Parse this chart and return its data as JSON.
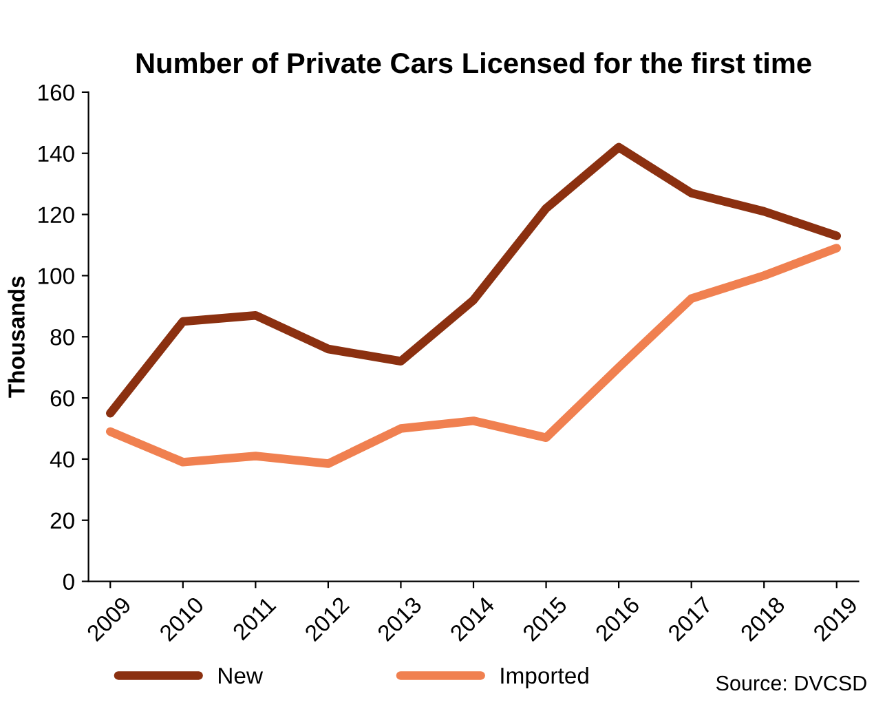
{
  "chart_data": {
    "type": "line",
    "title": "Number of Private Cars Licensed for the first time",
    "ylabel": "Thousands",
    "categories": [
      "2009",
      "2010",
      "2011",
      "2012",
      "2013",
      "2014",
      "2015",
      "2016",
      "2017",
      "2018",
      "2019"
    ],
    "series": [
      {
        "name": "New",
        "color": "#8b3010",
        "values": [
          55,
          85,
          87,
          76,
          72,
          92,
          122,
          142,
          127,
          121,
          113
        ]
      },
      {
        "name": "Imported",
        "color": "#f08050",
        "values": [
          49,
          39,
          41,
          38.5,
          50,
          52.5,
          47,
          70,
          92.5,
          100,
          109
        ]
      }
    ],
    "ylim": [
      0,
      160
    ],
    "yticks": [
      0,
      20,
      40,
      60,
      80,
      100,
      120,
      140,
      160
    ],
    "grid": false,
    "legend": "bottom",
    "marker": "none",
    "line_style": "solid",
    "annotations": [
      "Source: DVCSD"
    ]
  }
}
